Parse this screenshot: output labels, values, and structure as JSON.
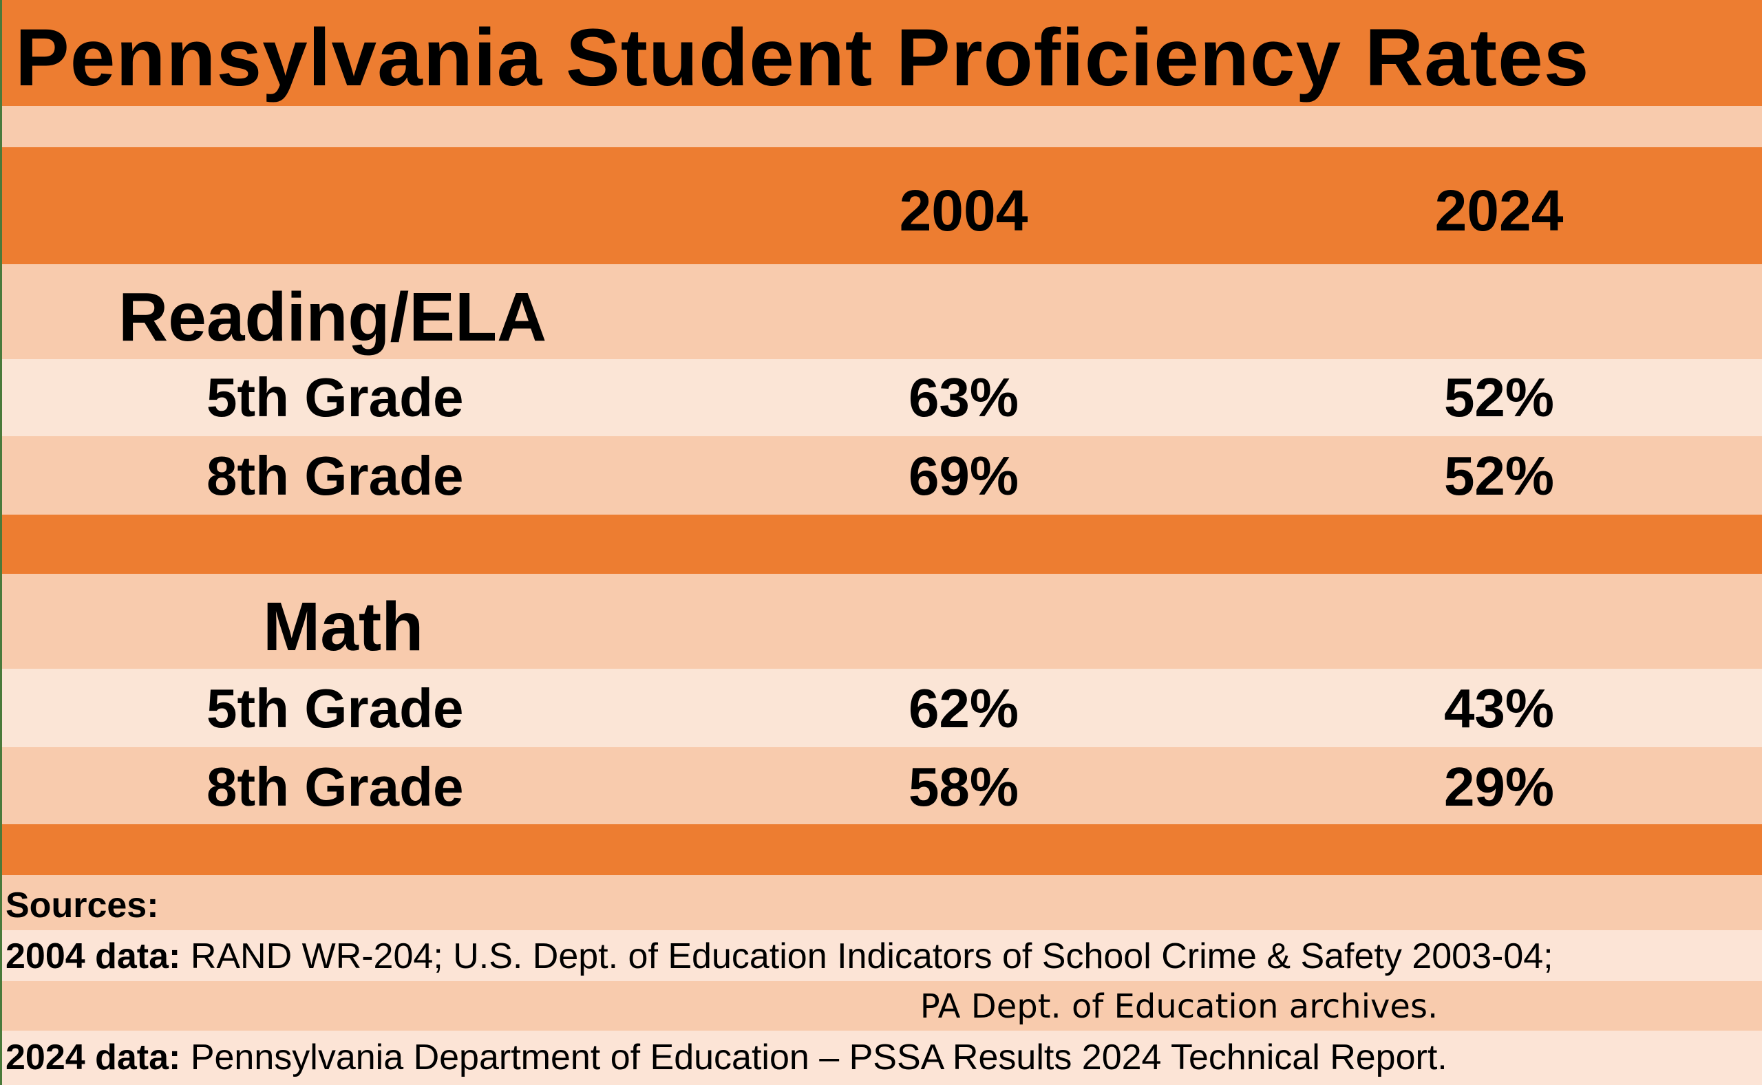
{
  "title": "Pennsylvania Student Proficiency Rates",
  "colors": {
    "header": "#ed7d31",
    "row": "#f8cbad",
    "row_alt": "#fbe5d6"
  },
  "chart_data": {
    "type": "table",
    "title": "Pennsylvania Student Proficiency Rates",
    "columns": [
      "",
      "2004",
      "2024"
    ],
    "sections": [
      {
        "name": "Reading/ELA",
        "rows": [
          {
            "label": "5th Grade",
            "values": [
              "63%",
              "52%"
            ]
          },
          {
            "label": "8th Grade",
            "values": [
              "69%",
              "52%"
            ]
          }
        ]
      },
      {
        "name": "Math",
        "rows": [
          {
            "label": "5th Grade",
            "values": [
              "62%",
              "43%"
            ]
          },
          {
            "label": "8th Grade",
            "values": [
              "58%",
              "29%"
            ]
          }
        ]
      }
    ]
  },
  "sources": {
    "heading": "Sources:",
    "line1_label": "2004 data:",
    "line1_text": " RAND WR-204; U.S. Dept. of Education Indicators of School Crime & Safety 2003-04;",
    "line2_text": "PA Dept. of Education archives.",
    "line3_label": "2024 data:",
    "line3_text": " Pennsylvania Department of Education – PSSA Results 2024 Technical Report."
  }
}
